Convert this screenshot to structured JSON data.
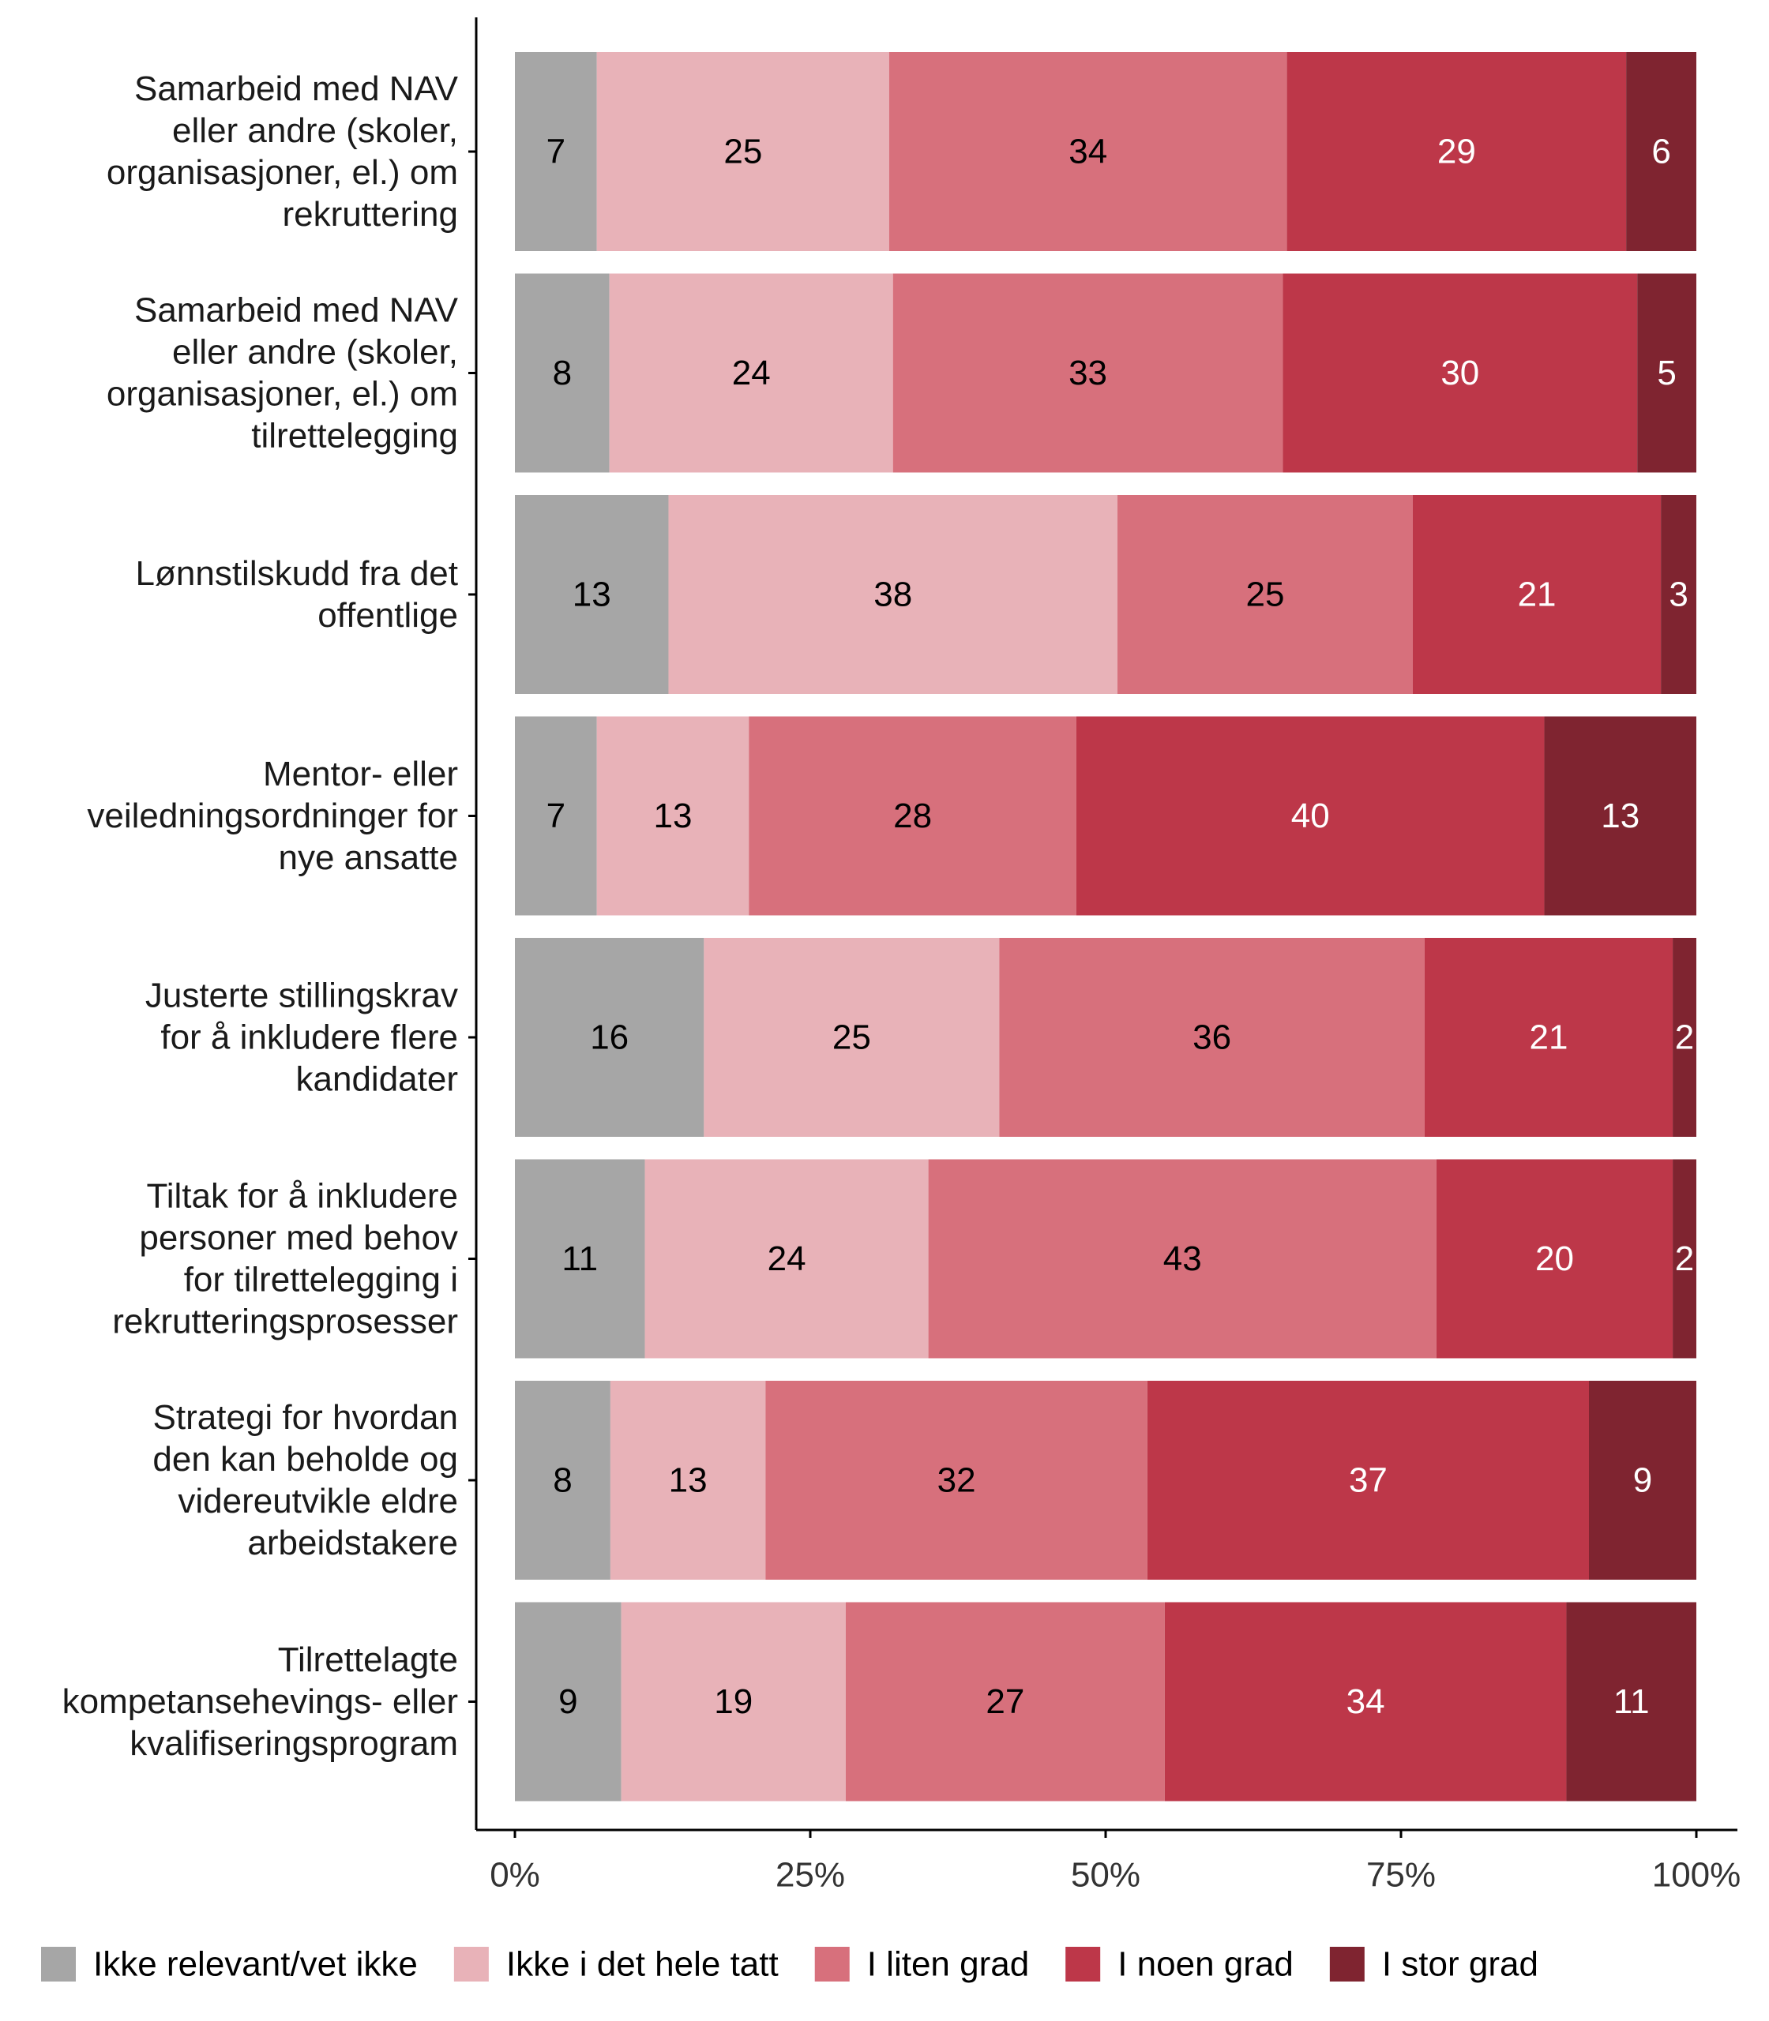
{
  "chart_data": {
    "type": "bar",
    "orientation": "horizontal",
    "stacked": true,
    "percent_scale": true,
    "title": "",
    "xlabel": "",
    "ylabel": "",
    "xlim": [
      0,
      100
    ],
    "x_ticks": [
      "0%",
      "25%",
      "50%",
      "75%",
      "100%"
    ],
    "grid": false,
    "legend_position": "bottom",
    "categories": [
      [
        "Samarbeid med NAV",
        "eller andre (skoler,",
        "organisasjoner, el.) om",
        "rekruttering"
      ],
      [
        "Samarbeid med NAV",
        "eller andre (skoler,",
        "organisasjoner, el.) om",
        "tilrettelegging"
      ],
      [
        "Lønnstilskudd fra det",
        "offentlige"
      ],
      [
        "Mentor- eller",
        "veiledningsordninger for",
        "nye ansatte"
      ],
      [
        "Justerte stillingskrav",
        "for å inkludere flere",
        "kandidater"
      ],
      [
        "Tiltak for å inkludere",
        "personer med behov",
        "for tilrettelegging i",
        "rekrutteringsprosesser"
      ],
      [
        "Strategi for hvordan",
        "den kan beholde og",
        "videreutvikle eldre",
        "arbeidstakere"
      ],
      [
        "Tilrettelagte",
        "kompetansehevings- eller",
        "kvalifiseringsprogram"
      ]
    ],
    "series": [
      {
        "name": "Ikke relevant/vet ikke",
        "color": "#a6a6a6",
        "label_color": "#000000",
        "values": [
          7,
          8,
          13,
          7,
          16,
          11,
          8,
          9
        ]
      },
      {
        "name": "Ikke i det hele tatt",
        "color": "#e8b2b8",
        "label_color": "#000000",
        "values": [
          25,
          24,
          38,
          13,
          25,
          24,
          13,
          19
        ]
      },
      {
        "name": "I liten grad",
        "color": "#d7707c",
        "label_color": "#000000",
        "values": [
          34,
          33,
          25,
          28,
          36,
          43,
          32,
          27
        ]
      },
      {
        "name": "I noen grad",
        "color": "#bd3749",
        "label_color": "#ffffff",
        "values": [
          29,
          30,
          21,
          40,
          21,
          20,
          37,
          34
        ]
      },
      {
        "name": "I stor grad",
        "color": "#7f2430",
        "label_color": "#ffffff",
        "values": [
          6,
          5,
          3,
          13,
          2,
          2,
          9,
          11
        ]
      }
    ]
  }
}
